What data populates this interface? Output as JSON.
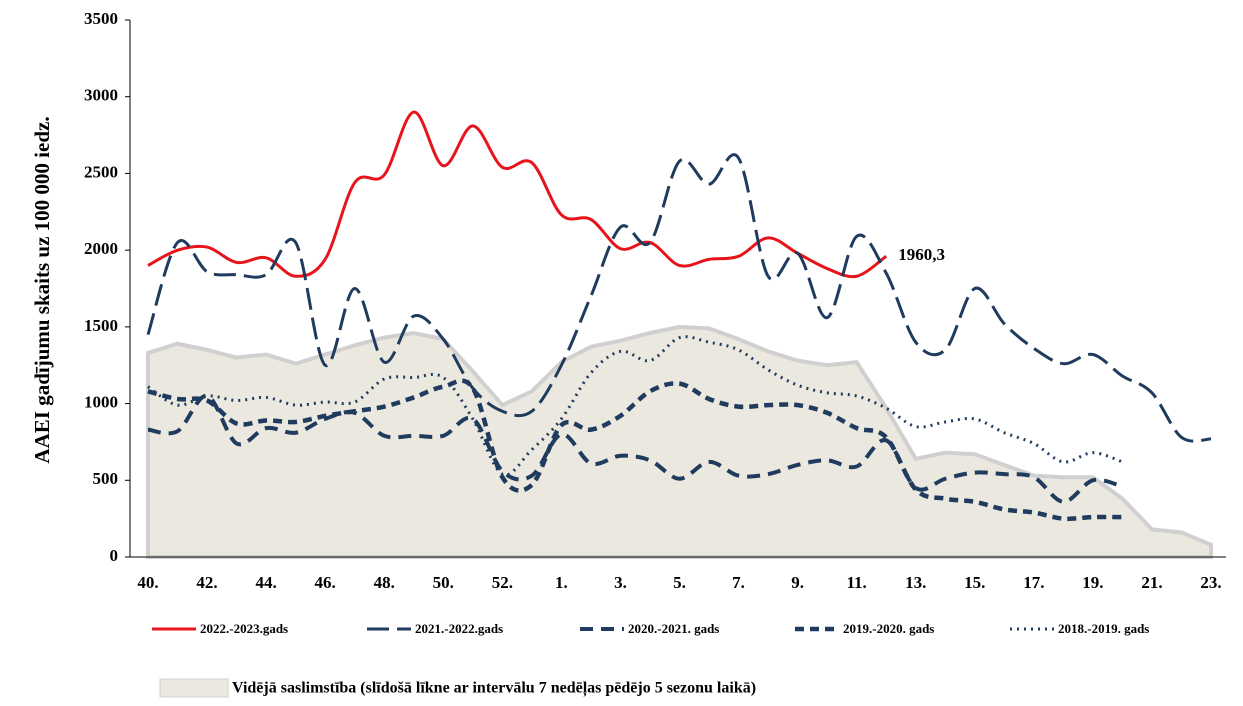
{
  "chart_data": {
    "type": "line",
    "y_label": "AAEI gadījumu skaits uz 100 000 iedz.",
    "categories": [
      "40.",
      null,
      "42.",
      null,
      "44.",
      null,
      "46.",
      null,
      "48.",
      null,
      "50.",
      null,
      "52.",
      null,
      "1.",
      null,
      "3.",
      null,
      "5.",
      null,
      "7.",
      null,
      "9.",
      null,
      "11.",
      null,
      "13.",
      null,
      "15.",
      null,
      "17.",
      null,
      "19.",
      null,
      "21.",
      null,
      "23."
    ],
    "ylim": [
      0,
      3500
    ],
    "yticks": [
      0,
      500,
      1000,
      1500,
      2000,
      2500,
      3000,
      3500
    ],
    "series": [
      {
        "name": "2022.-2023.gads",
        "color": "#e8141b",
        "style": "solid",
        "values": [
          1900,
          2000,
          2020,
          1920,
          1950,
          1830,
          1940,
          2440,
          2490,
          2900,
          2550,
          2810,
          2540,
          2570,
          2230,
          2200,
          2010,
          2050,
          1900,
          1940,
          1960,
          2080,
          1980,
          1880,
          1830,
          1960.3,
          null,
          null,
          null,
          null,
          null,
          null,
          null,
          null,
          null,
          null,
          null
        ],
        "value_labels": [
          null,
          null,
          null,
          null,
          null,
          null,
          null,
          null,
          null,
          null,
          null,
          null,
          null,
          null,
          null,
          null,
          null,
          null,
          null,
          null,
          null,
          null,
          null,
          null,
          null,
          "1960,3",
          null,
          null,
          null,
          null,
          null,
          null,
          null,
          null,
          null,
          null,
          null
        ]
      },
      {
        "name": "2021.-2022.gads",
        "color": "#1f3b5e",
        "style": "long-dash",
        "values": [
          1450,
          2050,
          1860,
          1840,
          1840,
          2050,
          1250,
          1750,
          1270,
          1570,
          1420,
          1100,
          950,
          950,
          1250,
          1700,
          2150,
          2050,
          2580,
          2430,
          2600,
          1830,
          1980,
          1560,
          2090,
          1850,
          1400,
          1350,
          1750,
          1520,
          1360,
          1260,
          1320,
          1180,
          1070,
          780,
          770
        ]
      },
      {
        "name": "2020.-2021. gads",
        "color": "#1f3b5e",
        "style": "dash",
        "values": [
          830,
          820,
          1050,
          740,
          840,
          810,
          900,
          940,
          790,
          790,
          790,
          900,
          560,
          530,
          800,
          610,
          660,
          630,
          510,
          620,
          530,
          540,
          600,
          630,
          590,
          760,
          450,
          510,
          550,
          540,
          520,
          360,
          500,
          460,
          null,
          null,
          null
        ]
      },
      {
        "name": "2019.-2020. gads",
        "color": "#1f3b5e",
        "style": "bold-dash",
        "values": [
          1080,
          1030,
          1020,
          870,
          890,
          880,
          920,
          950,
          980,
          1040,
          1110,
          1100,
          520,
          470,
          860,
          830,
          920,
          1080,
          1130,
          1030,
          980,
          990,
          990,
          940,
          840,
          780,
          440,
          380,
          360,
          310,
          290,
          250,
          260,
          260,
          null,
          null,
          null
        ]
      },
      {
        "name": "2018.-2019. gads",
        "color": "#1f3b5e",
        "style": "dotted",
        "values": [
          1110,
          990,
          1050,
          1020,
          1040,
          990,
          1010,
          1010,
          1160,
          1170,
          1170,
          900,
          540,
          700,
          900,
          1200,
          1340,
          1280,
          1430,
          1400,
          1350,
          1220,
          1120,
          1070,
          1050,
          970,
          850,
          880,
          900,
          810,
          740,
          620,
          680,
          620,
          null,
          null,
          null
        ]
      },
      {
        "name": "Vidējā saslimstība (slīdošā līkne ar intervālu 7 nedēļas pēdējo 5 sezonu laikā)",
        "color": "#ebe8df",
        "style": "area",
        "values": [
          1330,
          1390,
          1350,
          1300,
          1320,
          1260,
          1320,
          1380,
          1430,
          1460,
          1420,
          1210,
          990,
          1080,
          1270,
          1370,
          1410,
          1460,
          1500,
          1490,
          1420,
          1340,
          1280,
          1250,
          1270,
          970,
          640,
          680,
          670,
          600,
          530,
          520,
          520,
          380,
          180,
          160,
          80
        ]
      }
    ]
  }
}
